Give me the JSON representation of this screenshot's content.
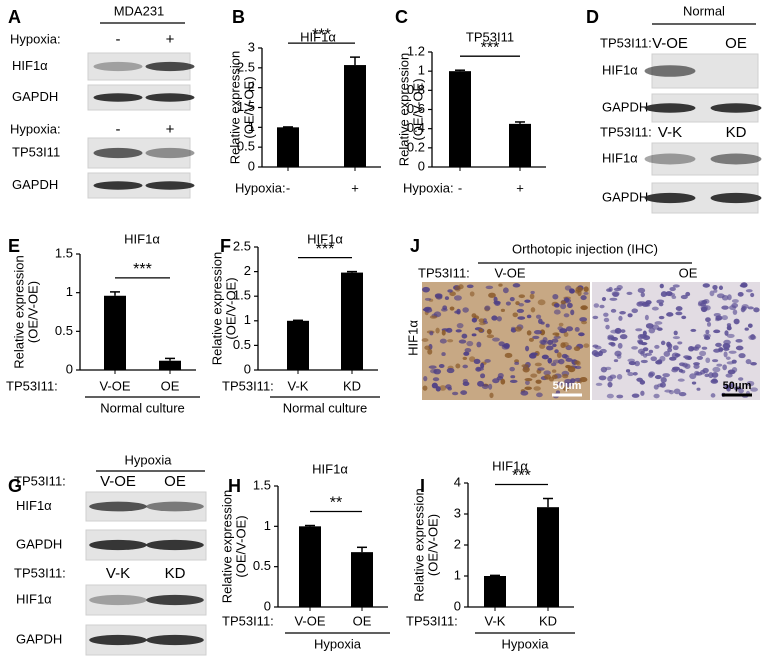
{
  "blots": [
    {
      "letter": "A",
      "header": "MDA231",
      "sections": [
        {
          "condition": "Hypoxia:",
          "lanes": [
            "-",
            "+"
          ],
          "bands": [
            "HIF1α",
            "GAPDH"
          ]
        },
        {
          "condition": "Hypoxia:",
          "lanes": [
            "-",
            "+"
          ],
          "bands": [
            "TP53I11",
            "GAPDH"
          ]
        }
      ]
    },
    {
      "letter": "D",
      "header": "Normal",
      "sections": [
        {
          "condition": "TP53I11:",
          "lanes": [
            "V-OE",
            "OE"
          ],
          "bands": [
            "HIF1α",
            "GAPDH"
          ]
        },
        {
          "condition": "TP53I11:",
          "lanes": [
            "V-K",
            "KD"
          ],
          "bands": [
            "HIF1α",
            "GAPDH"
          ]
        }
      ]
    },
    {
      "letter": "G",
      "header": "Hypoxia",
      "sections": [
        {
          "condition": "TP53I11:",
          "lanes": [
            "V-OE",
            "OE"
          ],
          "bands": [
            "HIF1α",
            "GAPDH"
          ]
        },
        {
          "condition": "TP53I11:",
          "lanes": [
            "V-K",
            "KD"
          ],
          "bands": [
            "HIF1α",
            "GAPDH"
          ]
        }
      ]
    }
  ],
  "ihc": {
    "letter": "J",
    "header": "Orthotopic injection (IHC)",
    "condition": "TP53I11:",
    "lanes": [
      "V-OE",
      "OE"
    ],
    "stain": "HIF1α",
    "scale_bar": "50μm"
  },
  "chart_data": [
    {
      "type": "bar",
      "panel": "B",
      "title": "HIF1α",
      "ylabel": [
        "Relative expression",
        "(OE/V-OE)"
      ],
      "xlabel": "Hypoxia:",
      "categories": [
        "-",
        "+"
      ],
      "values": [
        1,
        2.57
      ],
      "errors": [
        0.01,
        0.2
      ],
      "significance": "***",
      "color": "#000000",
      "ylim": [
        0,
        3
      ],
      "yticks": [
        0,
        0.5,
        1,
        1.5,
        2,
        2.5,
        3
      ]
    },
    {
      "type": "bar",
      "panel": "C",
      "title": "TP53I11",
      "ylabel": [
        "Relative expression",
        "(OE/V-OE)"
      ],
      "xlabel": "Hypoxia:",
      "categories": [
        "-",
        "+"
      ],
      "values": [
        1,
        0.45
      ],
      "errors": [
        0.01,
        0.02
      ],
      "significance": "***",
      "color": "#000000",
      "ylim": [
        0,
        1.2
      ],
      "yticks": [
        0,
        0.2,
        0.4,
        0.6,
        0.8,
        1,
        1.2
      ]
    },
    {
      "type": "bar",
      "panel": "E",
      "title": "HIF1α",
      "ylabel": [
        "Relative expression",
        "(OE/V-OE)"
      ],
      "xlabel": "TP53I11:",
      "categories": [
        "V-OE",
        "OE"
      ],
      "values": [
        0.96,
        0.12
      ],
      "errors": [
        0.05,
        0.03
      ],
      "significance": "***",
      "group": "Normal culture",
      "color": "#000000",
      "ylim": [
        0,
        1.5
      ],
      "yticks": [
        0,
        0.5,
        1,
        1.5
      ]
    },
    {
      "type": "bar",
      "panel": "F",
      "title": "HIF1α",
      "ylabel": [
        "Relative expression",
        "(OE/V-OE)"
      ],
      "xlabel": "TP53I11:",
      "categories": [
        "V-K",
        "KD"
      ],
      "values": [
        1,
        1.98
      ],
      "errors": [
        0.01,
        0.02
      ],
      "significance": "***",
      "group": "Normal culture",
      "color": "#000000",
      "ylim": [
        0,
        2.5
      ],
      "yticks": [
        0,
        0.5,
        1,
        1.5,
        2,
        2.5
      ]
    },
    {
      "type": "bar",
      "panel": "H",
      "title": "HIF1α",
      "ylabel": [
        "Relative expression",
        "(OE/V-OE)"
      ],
      "xlabel": "TP53I11:",
      "categories": [
        "V-OE",
        "OE"
      ],
      "values": [
        1,
        0.68
      ],
      "errors": [
        0.01,
        0.06
      ],
      "significance": "**",
      "group": "Hypoxia",
      "color": "#000000",
      "ylim": [
        0,
        1.5
      ],
      "yticks": [
        0,
        0.5,
        1,
        1.5
      ]
    },
    {
      "type": "bar",
      "panel": "I",
      "title": "HIF1α",
      "ylabel": [
        "Relative expression",
        "(OE/V-OE)"
      ],
      "xlabel": "TP53I11:",
      "categories": [
        "V-K",
        "KD"
      ],
      "values": [
        1,
        3.22
      ],
      "errors": [
        0.02,
        0.28
      ],
      "significance": "***",
      "group": "Hypoxia",
      "color": "#000000",
      "ylim": [
        0,
        4
      ],
      "yticks": [
        0,
        1,
        2,
        3,
        4
      ]
    }
  ]
}
